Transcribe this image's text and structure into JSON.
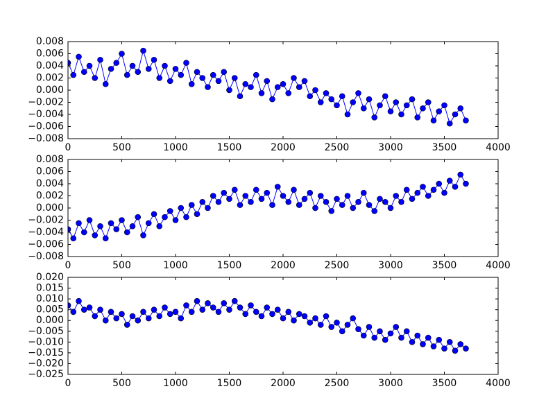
{
  "chart_data": [
    {
      "type": "line",
      "xlim": [
        0,
        4000
      ],
      "xticks": [
        0,
        500,
        1000,
        1500,
        2000,
        2500,
        3000,
        3500,
        4000
      ],
      "ylim": [
        -0.008,
        0.008
      ],
      "yticks": [
        {
          "value": -0.008,
          "label": "−0.008"
        },
        {
          "value": -0.006,
          "label": "−0.006"
        },
        {
          "value": -0.004,
          "label": "−0.004"
        },
        {
          "value": -0.002,
          "label": "−0.002"
        },
        {
          "value": 0,
          "label": "0.000"
        },
        {
          "value": 0.002,
          "label": "0.002"
        },
        {
          "value": 0.004,
          "label": "0.004"
        },
        {
          "value": 0.006,
          "label": "0.006"
        },
        {
          "value": 0.008,
          "label": "0.008"
        }
      ],
      "x": [
        0,
        50,
        100,
        150,
        200,
        250,
        300,
        350,
        400,
        450,
        500,
        550,
        600,
        650,
        700,
        750,
        800,
        850,
        900,
        950,
        1000,
        1050,
        1100,
        1150,
        1200,
        1250,
        1300,
        1350,
        1400,
        1450,
        1500,
        1550,
        1600,
        1650,
        1700,
        1750,
        1800,
        1850,
        1900,
        1950,
        2000,
        2050,
        2100,
        2150,
        2200,
        2250,
        2300,
        2350,
        2400,
        2450,
        2500,
        2550,
        2600,
        2650,
        2700,
        2750,
        2800,
        2850,
        2900,
        2950,
        3000,
        3050,
        3100,
        3150,
        3200,
        3250,
        3300,
        3350,
        3400,
        3450,
        3500,
        3550,
        3600,
        3650,
        3700
      ],
      "series": [
        {
          "color": "#0000ff",
          "values": [
            0.0045,
            0.0025,
            0.0055,
            0.003,
            0.004,
            0.002,
            0.005,
            0.001,
            0.0035,
            0.0045,
            0.006,
            0.0025,
            0.004,
            0.003,
            0.0065,
            0.0035,
            0.005,
            0.002,
            0.004,
            0.0015,
            0.0035,
            0.0025,
            0.0045,
            0.001,
            0.003,
            0.002,
            0.0005,
            0.0025,
            0.0015,
            0.003,
            0,
            0.002,
            -0.001,
            0.001,
            0.0005,
            0.0025,
            -0.0005,
            0.0015,
            -0.0015,
            0.0005,
            0.001,
            -0.0005,
            0.002,
            0.0005,
            0.0015,
            -0.001,
            0,
            -0.002,
            -0.0005,
            -0.0015,
            -0.0025,
            -0.001,
            -0.004,
            -0.002,
            -0.0005,
            -0.003,
            -0.0015,
            -0.0045,
            -0.0025,
            -0.001,
            -0.0035,
            -0.002,
            -0.004,
            -0.0025,
            -0.0015,
            -0.0045,
            -0.003,
            -0.002,
            -0.005,
            -0.0035,
            -0.0025,
            -0.0055,
            -0.004,
            -0.003,
            -0.005
          ]
        }
      ]
    },
    {
      "type": "line",
      "xlim": [
        0,
        4000
      ],
      "xticks": [
        0,
        500,
        1000,
        1500,
        2000,
        2500,
        3000,
        3500,
        4000
      ],
      "ylim": [
        -0.008,
        0.008
      ],
      "yticks": [
        {
          "value": -0.008,
          "label": "−0.008"
        },
        {
          "value": -0.006,
          "label": "−0.006"
        },
        {
          "value": -0.004,
          "label": "−0.004"
        },
        {
          "value": -0.002,
          "label": "−0.002"
        },
        {
          "value": 0,
          "label": "0.000"
        },
        {
          "value": 0.002,
          "label": "0.002"
        },
        {
          "value": 0.004,
          "label": "0.004"
        },
        {
          "value": 0.006,
          "label": "0.006"
        },
        {
          "value": 0.008,
          "label": "0.008"
        }
      ],
      "x": [
        0,
        50,
        100,
        150,
        200,
        250,
        300,
        350,
        400,
        450,
        500,
        550,
        600,
        650,
        700,
        750,
        800,
        850,
        900,
        950,
        1000,
        1050,
        1100,
        1150,
        1200,
        1250,
        1300,
        1350,
        1400,
        1450,
        1500,
        1550,
        1600,
        1650,
        1700,
        1750,
        1800,
        1850,
        1900,
        1950,
        2000,
        2050,
        2100,
        2150,
        2200,
        2250,
        2300,
        2350,
        2400,
        2450,
        2500,
        2550,
        2600,
        2650,
        2700,
        2750,
        2800,
        2850,
        2900,
        2950,
        3000,
        3050,
        3100,
        3150,
        3200,
        3250,
        3300,
        3350,
        3400,
        3450,
        3500,
        3550,
        3600,
        3650,
        3700
      ],
      "series": [
        {
          "color": "#0000ff",
          "values": [
            -0.0035,
            -0.005,
            -0.0025,
            -0.004,
            -0.002,
            -0.0045,
            -0.003,
            -0.005,
            -0.0025,
            -0.0035,
            -0.002,
            -0.004,
            -0.003,
            -0.0015,
            -0.0045,
            -0.0025,
            -0.001,
            -0.003,
            -0.0015,
            -0.0005,
            -0.002,
            0,
            -0.0015,
            0.0005,
            -0.001,
            0.001,
            0,
            0.002,
            0.001,
            0.0025,
            0.0015,
            0.003,
            0.0005,
            0.002,
            0.001,
            0.003,
            0.0015,
            0.0025,
            0.0005,
            0.0035,
            0.002,
            0.001,
            0.003,
            0.0005,
            0.0015,
            0.0025,
            0,
            0.002,
            0.001,
            -0.0005,
            0.0015,
            0.0005,
            0.002,
            0,
            0.001,
            0.0025,
            0.0005,
            -0.0005,
            0.0015,
            0.001,
            0,
            0.002,
            0.001,
            0.003,
            0.0015,
            0.0025,
            0.0035,
            0.002,
            0.003,
            0.004,
            0.0025,
            0.0045,
            0.0035,
            0.0055,
            0.004
          ]
        }
      ]
    },
    {
      "type": "line",
      "xlim": [
        0,
        4000
      ],
      "xticks": [
        0,
        500,
        1000,
        1500,
        2000,
        2500,
        3000,
        3500,
        4000
      ],
      "ylim": [
        -0.025,
        0.02
      ],
      "yticks": [
        {
          "value": -0.025,
          "label": "−0.025"
        },
        {
          "value": -0.02,
          "label": "−0.020"
        },
        {
          "value": -0.015,
          "label": "−0.015"
        },
        {
          "value": -0.01,
          "label": "−0.010"
        },
        {
          "value": -0.005,
          "label": "−0.005"
        },
        {
          "value": 0,
          "label": "0.000"
        },
        {
          "value": 0.005,
          "label": "0.005"
        },
        {
          "value": 0.01,
          "label": "0.010"
        },
        {
          "value": 0.015,
          "label": "0.015"
        },
        {
          "value": 0.02,
          "label": "0.020"
        }
      ],
      "x": [
        0,
        50,
        100,
        150,
        200,
        250,
        300,
        350,
        400,
        450,
        500,
        550,
        600,
        650,
        700,
        750,
        800,
        850,
        900,
        950,
        1000,
        1050,
        1100,
        1150,
        1200,
        1250,
        1300,
        1350,
        1400,
        1450,
        1500,
        1550,
        1600,
        1650,
        1700,
        1750,
        1800,
        1850,
        1900,
        1950,
        2000,
        2050,
        2100,
        2150,
        2200,
        2250,
        2300,
        2350,
        2400,
        2450,
        2500,
        2550,
        2600,
        2650,
        2700,
        2750,
        2800,
        2850,
        2900,
        2950,
        3000,
        3050,
        3100,
        3150,
        3200,
        3250,
        3300,
        3350,
        3400,
        3450,
        3500,
        3550,
        3600,
        3650,
        3700
      ],
      "series": [
        {
          "color": "#0000ff",
          "values": [
            0.007,
            0.004,
            0.009,
            0.005,
            0.006,
            0.002,
            0.005,
            0,
            0.004,
            0.001,
            0.003,
            -0.002,
            0.002,
            0,
            0.004,
            0.001,
            0.005,
            0.002,
            0.006,
            0.003,
            0.004,
            0.001,
            0.007,
            0.004,
            0.009,
            0.005,
            0.008,
            0.006,
            0.004,
            0.008,
            0.005,
            0.009,
            0.006,
            0.003,
            0.007,
            0.004,
            0.002,
            0.006,
            0.003,
            0.005,
            0.001,
            0.004,
            0,
            0.003,
            0.002,
            -0.001,
            0.001,
            -0.002,
            0.002,
            -0.003,
            -0.001,
            -0.005,
            -0.002,
            0.001,
            -0.004,
            -0.007,
            -0.003,
            -0.008,
            -0.005,
            -0.009,
            -0.006,
            -0.003,
            -0.008,
            -0.005,
            -0.01,
            -0.007,
            -0.011,
            -0.008,
            -0.012,
            -0.009,
            -0.013,
            -0.01,
            -0.014,
            -0.011,
            -0.013
          ]
        }
      ]
    }
  ]
}
